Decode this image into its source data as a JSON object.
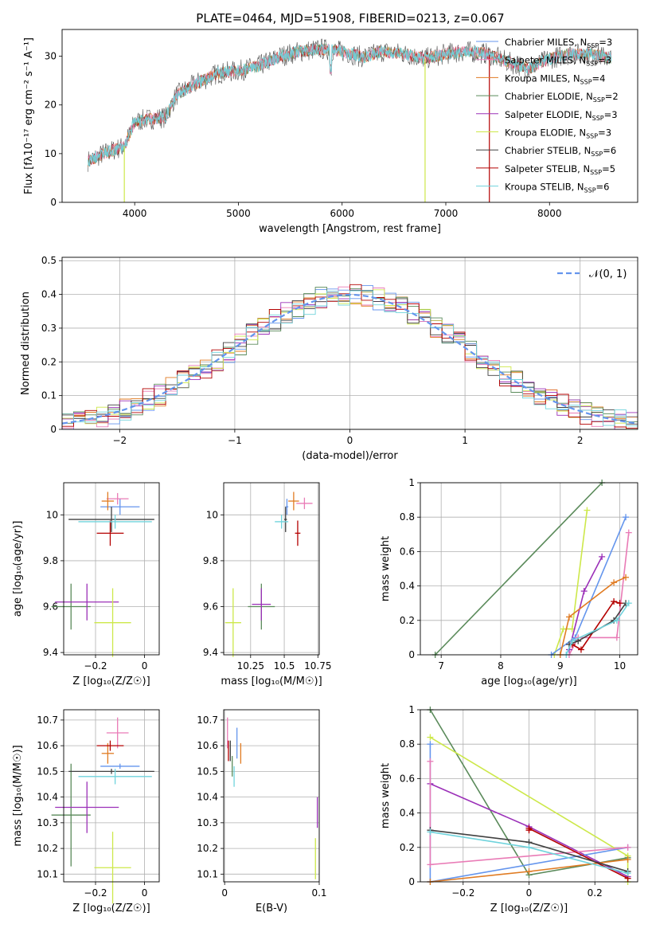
{
  "page_title": "PLATE=0464, MJD=51908, FIBERID=0213, z=0.067",
  "colors": {
    "chabrier_miles": "#6495ed",
    "salpeter_miles": "#e97bb6",
    "kroupa_miles": "#e07b22",
    "chabrier_elodie": "#5a8a5a",
    "salpeter_elodie": "#9b30b8",
    "kroupa_elodie": "#cde84a",
    "chabrier_stelib": "#404040",
    "salpeter_stelib": "#b40000",
    "kroupa_stelib": "#6fd3dc",
    "normal_curve": "#6495ed"
  },
  "legend": {
    "spectrum": [
      {
        "model": "Chabrier MILES",
        "nssp": "3",
        "color_key": "chabrier_miles"
      },
      {
        "model": "Salpeter MILES",
        "nssp": "3",
        "color_key": "salpeter_miles"
      },
      {
        "model": "Kroupa MILES",
        "nssp": "4",
        "color_key": "kroupa_miles"
      },
      {
        "model": "Chabrier ELODIE",
        "nssp": "2",
        "color_key": "chabrier_elodie"
      },
      {
        "model": "Salpeter ELODIE",
        "nssp": "3",
        "color_key": "salpeter_elodie"
      },
      {
        "model": "Kroupa ELODIE",
        "nssp": "3",
        "color_key": "kroupa_elodie"
      },
      {
        "model": "Chabrier STELIB",
        "nssp": "6",
        "color_key": "chabrier_stelib"
      },
      {
        "model": "Salpeter STELIB",
        "nssp": "5",
        "color_key": "salpeter_stelib"
      },
      {
        "model": "Kroupa STELIB",
        "nssp": "6",
        "color_key": "kroupa_stelib"
      }
    ],
    "histogram_label": "𝒩(0, 1)"
  },
  "chart_data": [
    {
      "id": "spectrum",
      "type": "line",
      "xlabel": "wavelength [Angstrom, rest frame]",
      "ylabel": "Flux [fλ10⁻¹⁷ erg cm⁻² s⁻¹ A⁻¹]",
      "xlim": [
        3300,
        8850
      ],
      "ylim": [
        0,
        35.5
      ],
      "xticks": [
        4000,
        5000,
        6000,
        7000,
        8000
      ],
      "yticks": [
        0,
        10,
        20,
        30
      ],
      "envelope": {
        "x": [
          3550,
          3700,
          3900,
          4000,
          4100,
          4300,
          4400,
          4600,
          4800,
          5000,
          5200,
          5400,
          5600,
          5800,
          6000,
          6200,
          6400,
          6600,
          6800,
          7000,
          7200,
          7400,
          7600,
          7800,
          8000,
          8200,
          8400,
          8600
        ],
        "y": [
          8.5,
          10,
          11.5,
          16.5,
          17,
          17.5,
          22,
          24.5,
          26.5,
          27,
          28,
          30,
          31,
          31.5,
          31,
          29.8,
          31,
          30.5,
          29.5,
          30.5,
          31,
          30.5,
          28.8,
          27.5,
          29.5,
          30.5,
          30.5,
          29.5
        ]
      }
    },
    {
      "id": "residual-histogram",
      "type": "histogram",
      "xlabel": "(data-model)/error",
      "ylabel": "Normed distribution",
      "xlim": [
        -2.5,
        2.5
      ],
      "ylim": [
        0,
        0.51
      ],
      "xticks": [
        -2,
        -1,
        0,
        1,
        2
      ],
      "yticks": [
        0.0,
        0.1,
        0.2,
        0.3,
        0.4,
        0.5
      ],
      "bins": 50
    },
    {
      "id": "age-vs-z",
      "type": "scatter",
      "xlabel": "Z [log₁₀(Z/Z☉)]",
      "ylabel": "age  [log₁₀(age/yr)]",
      "xlim": [
        -0.33,
        0.06
      ],
      "ylim": [
        9.39,
        10.14
      ],
      "xticks": [
        -0.2,
        0.0
      ],
      "yticks": [
        9.4,
        9.6,
        9.8,
        10.0
      ],
      "points": [
        {
          "key": "chabrier_miles",
          "x": -0.1,
          "y": 10.035,
          "xerr": 0.08,
          "yerr": 0.035
        },
        {
          "key": "salpeter_miles",
          "x": -0.11,
          "y": 10.07,
          "xerr": 0.045,
          "yerr": 0.025
        },
        {
          "key": "kroupa_miles",
          "x": -0.15,
          "y": 10.06,
          "xerr": 0.025,
          "yerr": 0.04
        },
        {
          "key": "chabrier_elodie",
          "x": -0.3,
          "y": 9.6,
          "xerr": 0.08,
          "yerr": 0.1
        },
        {
          "key": "salpeter_elodie",
          "x": -0.235,
          "y": 9.62,
          "xerr": 0.13,
          "yerr": 0.08
        },
        {
          "key": "kroupa_elodie",
          "x": -0.13,
          "y": 9.53,
          "xerr": 0.075,
          "yerr": 0.15
        },
        {
          "key": "chabrier_stelib",
          "x": -0.135,
          "y": 9.98,
          "xerr": 0.175,
          "yerr": 0.055
        },
        {
          "key": "salpeter_stelib",
          "x": -0.14,
          "y": 9.92,
          "xerr": 0.055,
          "yerr": 0.055
        },
        {
          "key": "kroupa_stelib",
          "x": -0.12,
          "y": 9.97,
          "xerr": 0.15,
          "yerr": 0.03
        }
      ]
    },
    {
      "id": "age-vs-mass",
      "type": "scatter",
      "xlabel": "mass [log₁₀(M/M☉)]",
      "ylabel": "",
      "xlim": [
        10.05,
        10.76
      ],
      "ylim": [
        9.39,
        10.14
      ],
      "xticks": [
        10.25,
        10.5,
        10.75
      ],
      "yticks": [
        9.4,
        9.6,
        9.8,
        10.0
      ],
      "points": [
        {
          "key": "chabrier_miles",
          "x": 10.52,
          "y": 10.035,
          "xerr": 0.01,
          "yerr": 0.035
        },
        {
          "key": "salpeter_miles",
          "x": 10.65,
          "y": 10.05,
          "xerr": 0.06,
          "yerr": 0.025
        },
        {
          "key": "kroupa_miles",
          "x": 10.57,
          "y": 10.06,
          "xerr": 0.04,
          "yerr": 0.04
        },
        {
          "key": "chabrier_elodie",
          "x": 10.33,
          "y": 9.6,
          "xerr": 0.1,
          "yerr": 0.1
        },
        {
          "key": "salpeter_elodie",
          "x": 10.33,
          "y": 9.61,
          "xerr": 0.07,
          "yerr": 0.07
        },
        {
          "key": "kroupa_elodie",
          "x": 10.12,
          "y": 9.53,
          "xerr": 0.06,
          "yerr": 0.15
        },
        {
          "key": "chabrier_stelib",
          "x": 10.51,
          "y": 9.98,
          "xerr": 0.01,
          "yerr": 0.055
        },
        {
          "key": "salpeter_stelib",
          "x": 10.6,
          "y": 9.92,
          "xerr": 0.02,
          "yerr": 0.055
        },
        {
          "key": "kroupa_stelib",
          "x": 10.48,
          "y": 9.97,
          "xerr": 0.05,
          "yerr": 0.03
        }
      ]
    },
    {
      "id": "cumulative-weight-age",
      "type": "line",
      "xlabel": "age  [log₁₀(age/yr)]",
      "ylabel": "mass weight",
      "xlim": [
        6.65,
        10.3
      ],
      "ylim": [
        0,
        1.0
      ],
      "xticks": [
        7,
        8,
        9,
        10
      ],
      "yticks": [
        0.0,
        0.2,
        0.4,
        0.6,
        0.8,
        1.0
      ],
      "series": [
        {
          "key": "chabrier_elodie",
          "x": [
            6.9,
            9.7
          ],
          "y": [
            0,
            1.0
          ]
        },
        {
          "key": "kroupa_elodie",
          "x": [
            8.9,
            9.05,
            9.2,
            9.45
          ],
          "y": [
            0,
            0.15,
            0.15,
            0.84
          ]
        },
        {
          "key": "chabrier_miles",
          "x": [
            8.85,
            9.25,
            10.1
          ],
          "y": [
            0,
            0.1,
            0.8
          ]
        },
        {
          "key": "salpeter_miles",
          "x": [
            9.15,
            9.3,
            9.95,
            10.15
          ],
          "y": [
            0,
            0.1,
            0.1,
            0.71
          ]
        },
        {
          "key": "salpeter_elodie",
          "x": [
            9.15,
            9.4,
            9.7
          ],
          "y": [
            0.03,
            0.37,
            0.57
          ]
        },
        {
          "key": "kroupa_miles",
          "x": [
            9.0,
            9.15,
            9.9,
            10.1
          ],
          "y": [
            0,
            0.22,
            0.42,
            0.45
          ]
        },
        {
          "key": "salpeter_stelib",
          "x": [
            9.2,
            9.35,
            9.9,
            10.0
          ],
          "y": [
            0.06,
            0.03,
            0.31,
            0.3
          ]
        },
        {
          "key": "chabrier_stelib",
          "x": [
            9.15,
            9.3,
            9.9,
            10.1
          ],
          "y": [
            0.06,
            0.08,
            0.2,
            0.3
          ]
        },
        {
          "key": "kroupa_stelib",
          "x": [
            9.1,
            9.2,
            9.95,
            10.15
          ],
          "y": [
            0,
            0.08,
            0.2,
            0.3
          ]
        }
      ]
    },
    {
      "id": "mass-vs-z",
      "type": "scatter",
      "xlabel": "Z [log₁₀(Z/Z☉)]",
      "ylabel": "mass [log₁₀(M/M☉)]",
      "xlim": [
        -0.33,
        0.06
      ],
      "ylim": [
        10.07,
        10.74
      ],
      "xticks": [
        -0.2,
        0.0
      ],
      "yticks": [
        10.1,
        10.2,
        10.3,
        10.4,
        10.5,
        10.6,
        10.7
      ],
      "points": [
        {
          "key": "chabrier_miles",
          "x": -0.1,
          "y": 10.52,
          "xerr": 0.08,
          "yerr": 0.01
        },
        {
          "key": "salpeter_miles",
          "x": -0.11,
          "y": 10.65,
          "xerr": 0.045,
          "yerr": 0.06
        },
        {
          "key": "kroupa_miles",
          "x": -0.15,
          "y": 10.57,
          "xerr": 0.025,
          "yerr": 0.04
        },
        {
          "key": "chabrier_elodie",
          "x": -0.3,
          "y": 10.33,
          "xerr": 0.08,
          "yerr": 0.2
        },
        {
          "key": "salpeter_elodie",
          "x": -0.235,
          "y": 10.36,
          "xerr": 0.13,
          "yerr": 0.1
        },
        {
          "key": "kroupa_elodie",
          "x": -0.13,
          "y": 10.125,
          "xerr": 0.075,
          "yerr": 0.14
        },
        {
          "key": "chabrier_stelib",
          "x": -0.135,
          "y": 10.5,
          "xerr": 0.175,
          "yerr": 0.01
        },
        {
          "key": "salpeter_stelib",
          "x": -0.14,
          "y": 10.6,
          "xerr": 0.055,
          "yerr": 0.02
        },
        {
          "key": "kroupa_stelib",
          "x": -0.12,
          "y": 10.48,
          "xerr": 0.15,
          "yerr": 0.03
        }
      ]
    },
    {
      "id": "mass-vs-ebv",
      "type": "scatter",
      "xlabel": "E(B-V)",
      "ylabel": "",
      "xlim": [
        -0.001,
        0.1
      ],
      "ylim": [
        10.07,
        10.74
      ],
      "xticks": [
        0.0,
        0.1
      ],
      "yticks": [
        10.1,
        10.2,
        10.3,
        10.4,
        10.5,
        10.6,
        10.7
      ],
      "points": [
        {
          "key": "chabrier_miles",
          "x": 0.013,
          "y": 10.61,
          "xerr": 0,
          "yerr": 0.06
        },
        {
          "key": "salpeter_miles",
          "x": 0.003,
          "y": 10.65,
          "xerr": 0,
          "yerr": 0.06
        },
        {
          "key": "kroupa_miles",
          "x": 0.017,
          "y": 10.57,
          "xerr": 0,
          "yerr": 0.04
        },
        {
          "key": "chabrier_elodie",
          "x": 0.008,
          "y": 10.52,
          "xerr": 0,
          "yerr": 0.04
        },
        {
          "key": "salpeter_elodie",
          "x": 0.098,
          "y": 10.34,
          "xerr": 0,
          "yerr": 0.06
        },
        {
          "key": "kroupa_elodie",
          "x": 0.096,
          "y": 10.16,
          "xerr": 0,
          "yerr": 0.08
        },
        {
          "key": "chabrier_stelib",
          "x": 0.006,
          "y": 10.58,
          "xerr": 0,
          "yerr": 0.04
        },
        {
          "key": "salpeter_stelib",
          "x": 0.004,
          "y": 10.58,
          "xerr": 0,
          "yerr": 0.04
        },
        {
          "key": "kroupa_stelib",
          "x": 0.01,
          "y": 10.48,
          "xerr": 0,
          "yerr": 0.04
        }
      ]
    },
    {
      "id": "cumulative-weight-z",
      "type": "line",
      "xlabel": "Z [log₁₀(Z/Z☉)]",
      "ylabel": "mass weight",
      "xlim": [
        -0.33,
        0.33
      ],
      "ylim": [
        0,
        1.0
      ],
      "xticks": [
        -0.2,
        0.0,
        0.2
      ],
      "yticks": [
        0.0,
        0.2,
        0.4,
        0.6,
        0.8,
        1.0
      ],
      "series": [
        {
          "key": "chabrier_elodie",
          "x": [
            -0.3,
            0.0,
            0.3
          ],
          "y": [
            1.0,
            0.04,
            0.14
          ]
        },
        {
          "key": "kroupa_elodie",
          "x": [
            -0.3,
            0.3,
            0.3
          ],
          "y": [
            0.84,
            0.15,
            0.0
          ]
        },
        {
          "key": "salpeter_elodie",
          "x": [
            -0.3,
            0.0,
            0.3
          ],
          "y": [
            0.57,
            0.32,
            0.03
          ]
        },
        {
          "key": "chabrier_miles",
          "x": [
            -0.3,
            -0.3,
            0.3
          ],
          "y": [
            0.8,
            0.0,
            0.2
          ]
        },
        {
          "key": "salpeter_miles",
          "x": [
            -0.3,
            -0.3,
            0.3
          ],
          "y": [
            0.7,
            0.1,
            0.2
          ]
        },
        {
          "key": "kroupa_miles",
          "x": [
            -0.3,
            0.0,
            0.3
          ],
          "y": [
            0.0,
            0.06,
            0.13
          ]
        },
        {
          "key": "salpeter_stelib",
          "x": [
            0.0,
            0.0,
            0.3
          ],
          "y": [
            0.3,
            0.31,
            0.02
          ]
        },
        {
          "key": "chabrier_stelib",
          "x": [
            -0.3,
            0.0,
            0.3
          ],
          "y": [
            0.3,
            0.23,
            0.06
          ]
        },
        {
          "key": "kroupa_stelib",
          "x": [
            -0.3,
            0.0,
            0.3
          ],
          "y": [
            0.29,
            0.2,
            0.05
          ]
        }
      ]
    }
  ]
}
